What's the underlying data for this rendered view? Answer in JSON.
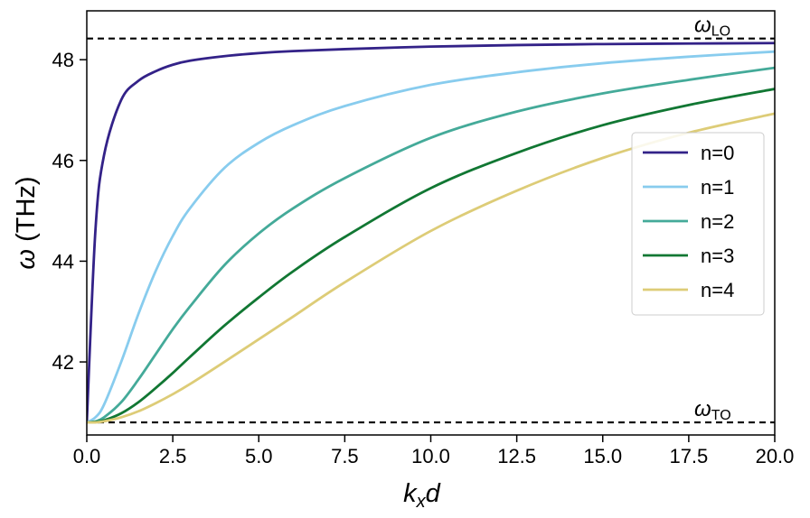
{
  "chart_data": {
    "type": "line",
    "title": "",
    "xlabel": "k_x d",
    "ylabel": "ω (THz)",
    "xlim": [
      0,
      20
    ],
    "ylim": [
      40.55,
      48.97
    ],
    "xticks": [
      0,
      2.5,
      5,
      7.5,
      10,
      12.5,
      15,
      17.5,
      20
    ],
    "xtick_labels": [
      "0.0",
      "2.5",
      "5.0",
      "7.5",
      "10.0",
      "12.5",
      "15.0",
      "17.5",
      "20.0"
    ],
    "yticks": [
      42,
      44,
      46,
      48
    ],
    "ytick_labels": [
      "42",
      "44",
      "46",
      "48"
    ],
    "grid": false,
    "legend_position": "center-right",
    "x": [
      0,
      0.25,
      0.5,
      1,
      1.5,
      2,
      2.5,
      3,
      4,
      5,
      6,
      7.5,
      10,
      12.5,
      15,
      17.5,
      20
    ],
    "series": [
      {
        "name": "n=0",
        "color": "#332288",
        "values": [
          40.8,
          44.6,
          46.1,
          47.2,
          47.58,
          47.77,
          47.9,
          47.98,
          48.07,
          48.13,
          48.17,
          48.21,
          48.26,
          48.29,
          48.31,
          48.32,
          48.33
        ]
      },
      {
        "name": "n=1",
        "color": "#88CCEE",
        "values": [
          40.8,
          40.9,
          41.15,
          42.0,
          42.95,
          43.8,
          44.5,
          45.05,
          45.85,
          46.35,
          46.7,
          47.08,
          47.5,
          47.75,
          47.93,
          48.06,
          48.16
        ]
      },
      {
        "name": "n=2",
        "color": "#44AA99",
        "values": [
          40.8,
          40.82,
          40.9,
          41.2,
          41.65,
          42.15,
          42.65,
          43.1,
          43.92,
          44.55,
          45.05,
          45.65,
          46.45,
          46.97,
          47.33,
          47.6,
          47.84
        ]
      },
      {
        "name": "n=3",
        "color": "#117733",
        "values": [
          40.8,
          40.81,
          40.84,
          40.98,
          41.2,
          41.48,
          41.78,
          42.1,
          42.72,
          43.28,
          43.8,
          44.48,
          45.45,
          46.15,
          46.7,
          47.1,
          47.42
        ]
      },
      {
        "name": "n=4",
        "color": "#DDCC77",
        "values": [
          40.8,
          40.8,
          40.82,
          40.9,
          41.02,
          41.18,
          41.36,
          41.56,
          42.0,
          42.45,
          42.9,
          43.58,
          44.6,
          45.4,
          46.05,
          46.55,
          46.93
        ]
      }
    ],
    "reference_lines": [
      {
        "label": "ω",
        "subscript": "LO",
        "value": 48.42,
        "style": "dashed",
        "color": "#000000"
      },
      {
        "label": "ω",
        "subscript": "TO",
        "value": 40.8,
        "style": "dashed",
        "color": "#000000"
      }
    ]
  }
}
